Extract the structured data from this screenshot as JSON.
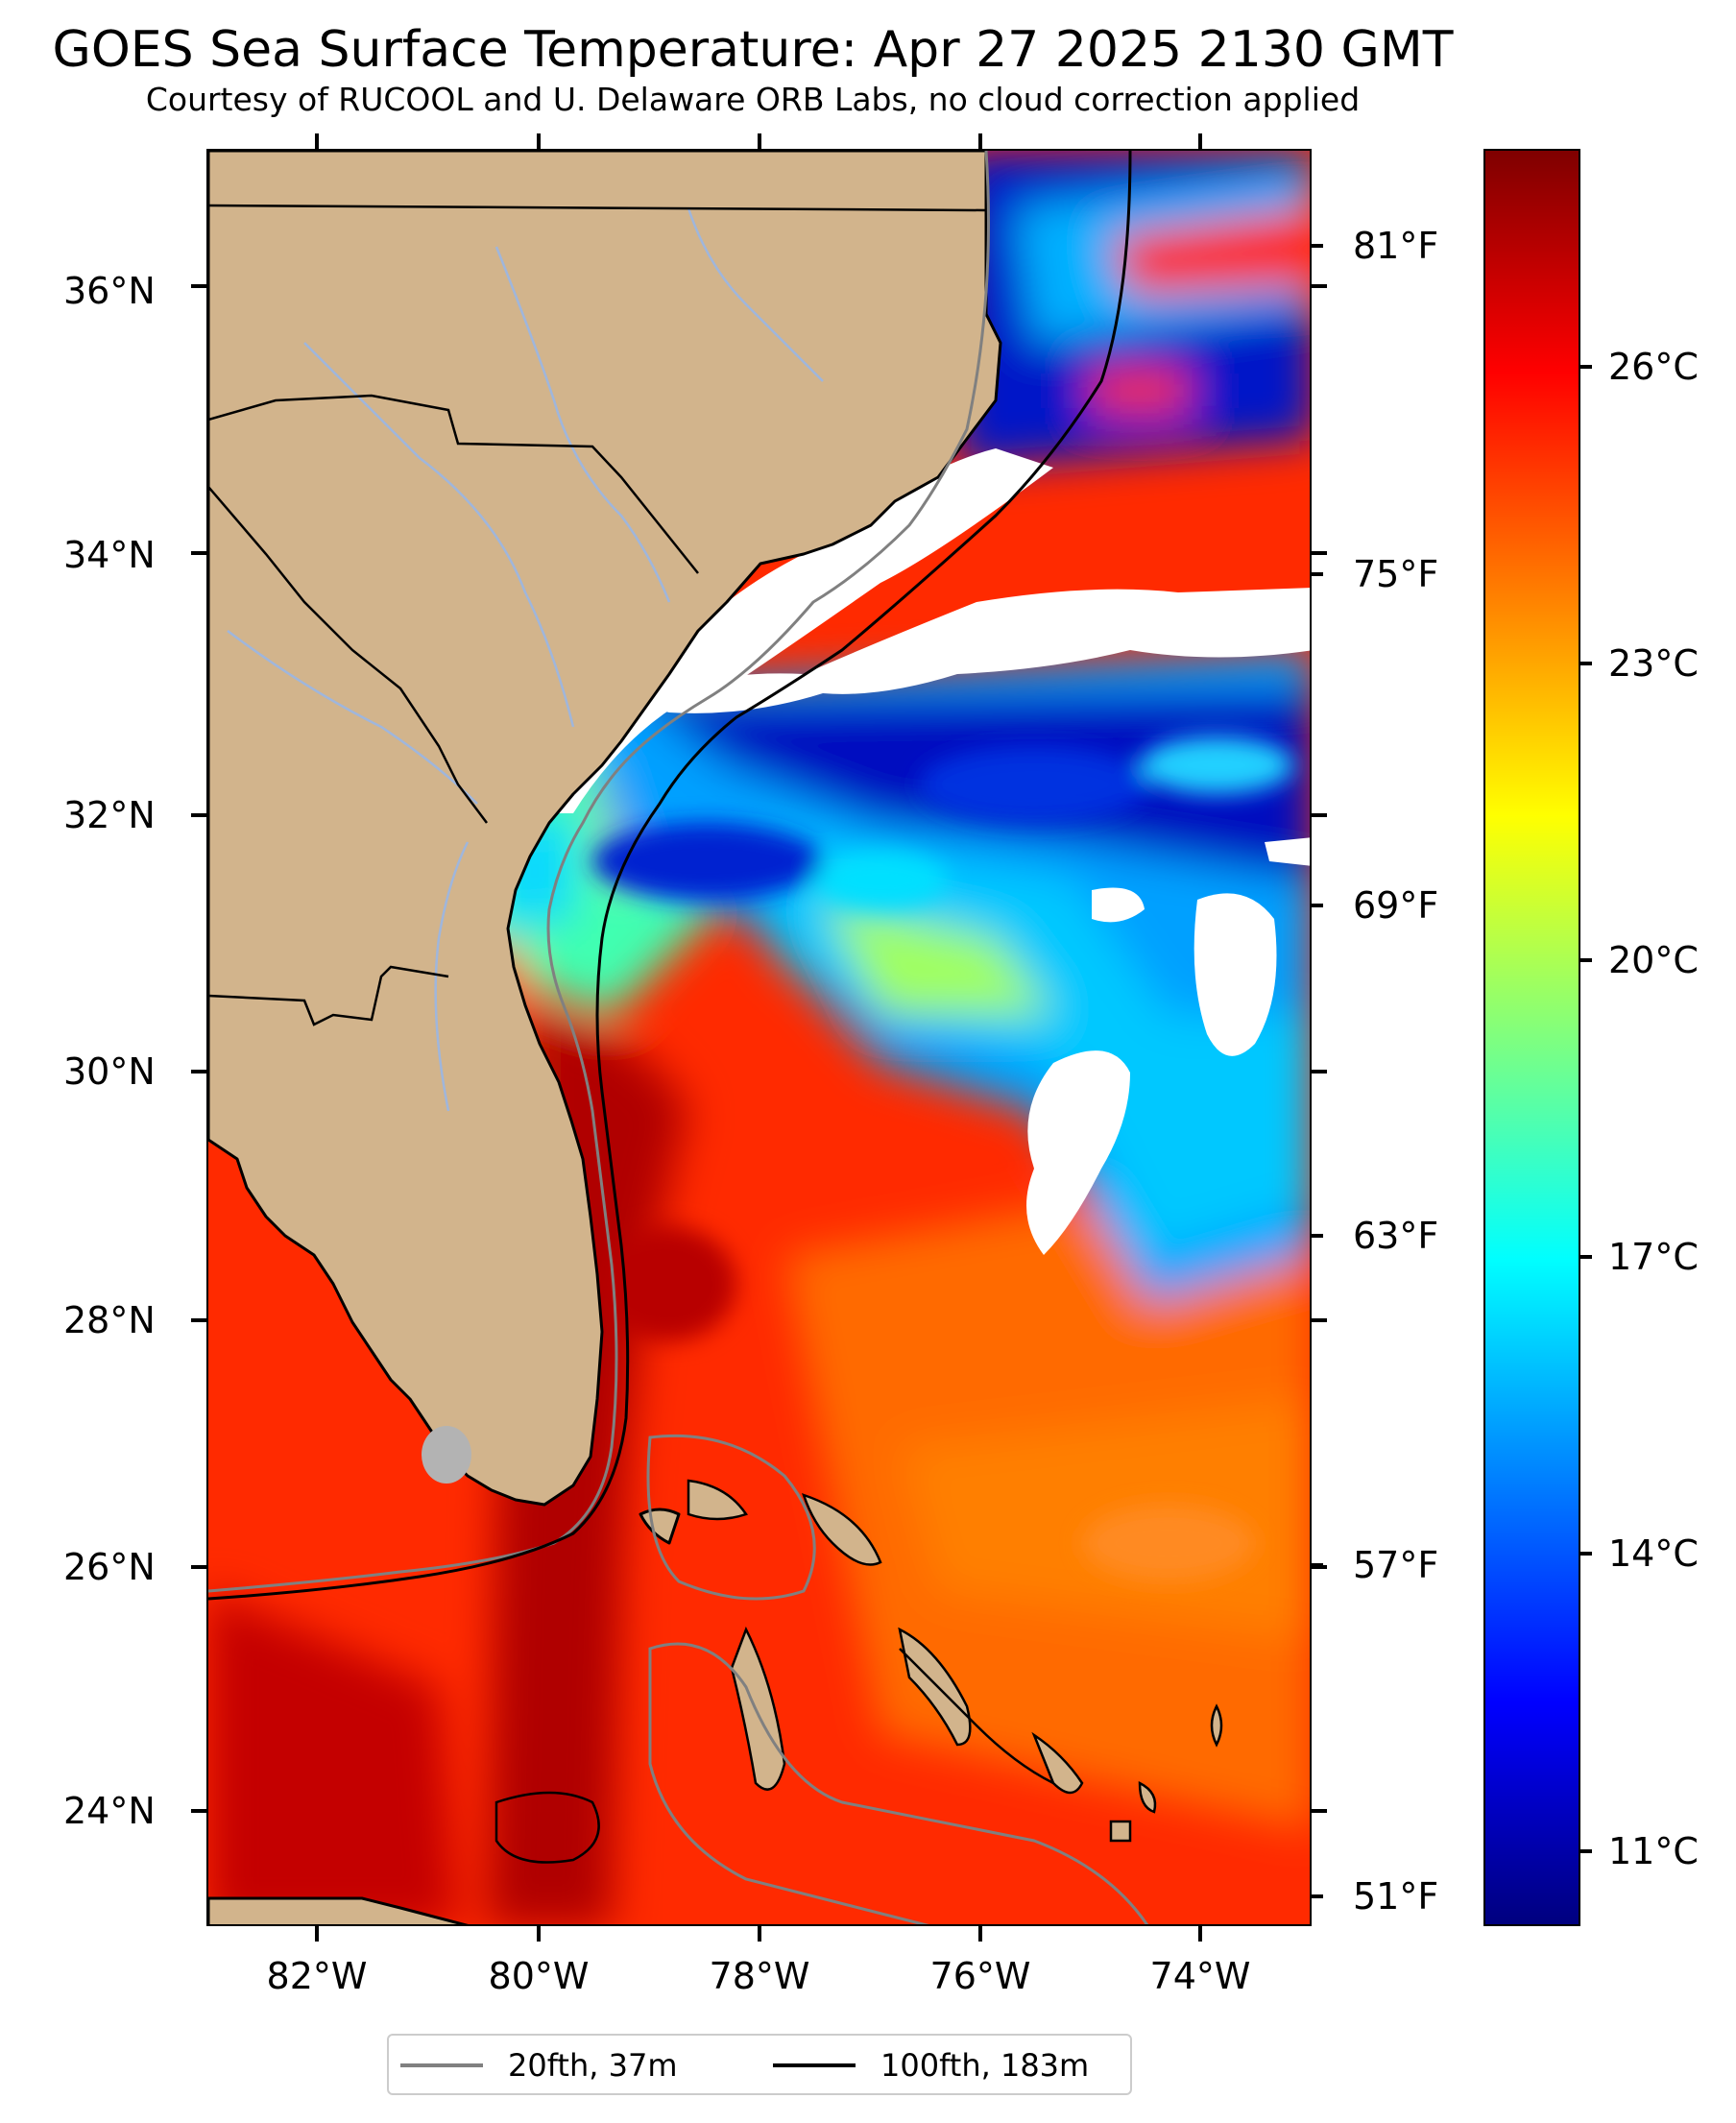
{
  "map": {
    "title": "GOES Sea Surface Temperature: Apr 27 2025 2130 GMT",
    "subtitle": "Courtesy of RUCOOL and U. Delaware ORB Labs, no cloud correction applied",
    "latitude_labels": [
      "36°N",
      "34°N",
      "32°N",
      "30°N",
      "28°N",
      "26°N",
      "24°N"
    ],
    "longitude_labels": [
      "82°W",
      "80°W",
      "78°W",
      "76°W",
      "74°W"
    ],
    "fahrenheit_labels": [
      "81°F",
      "75°F",
      "69°F",
      "63°F",
      "57°F",
      "51°F"
    ],
    "celsius_labels": [
      "26°C",
      "23°C",
      "20°C",
      "17°C",
      "14°C",
      "11°C"
    ],
    "extent": {
      "lon_min": -83,
      "lon_max": -73,
      "lat_min": 23.1,
      "lat_max": 37
    },
    "colormap": "jet",
    "land_color": "#d2b48c",
    "cloud_mask_color": "#ffffff",
    "colors": {
      "isobath_20fth": "#808080",
      "isobath_100fth": "#000000",
      "rivers": "#9fb6dc",
      "lake": "#b3b3b3"
    }
  },
  "legend": {
    "items": [
      {
        "label": "20fth, 37m",
        "color": "#808080"
      },
      {
        "label": "100fth, 183m",
        "color": "#000000"
      }
    ]
  }
}
